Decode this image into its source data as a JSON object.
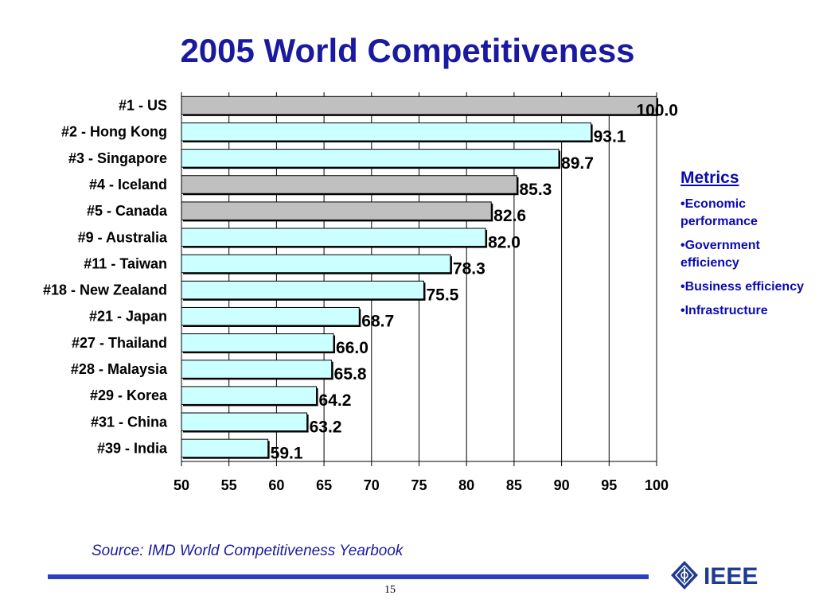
{
  "slide": {
    "source": "Source: IMD World Competitiveness Yearbook",
    "page_number": "15",
    "logo_text": "IEEE"
  },
  "metrics": {
    "heading": "Metrics",
    "items": [
      "•Economic performance",
      "•Government efficiency",
      "•Business efficiency",
      "•Infrastructure"
    ]
  },
  "chart_data": {
    "type": "bar",
    "orientation": "horizontal",
    "title": "2005 World Competitiveness",
    "xlabel": "",
    "ylabel": "",
    "xlim": [
      50,
      100
    ],
    "xticks": [
      50,
      55,
      60,
      65,
      70,
      75,
      80,
      85,
      90,
      95,
      100
    ],
    "grid": "vertical",
    "legend": "none",
    "categories": [
      "#1 - US",
      "#2 - Hong Kong",
      "#3 - Singapore",
      "#4 - Iceland",
      "#5 - Canada",
      "#9 - Australia",
      "#11 - Taiwan",
      "#18 - New Zealand",
      "#21 - Japan",
      "#27 - Thailand",
      "#28 - Malaysia",
      "#29 - Korea",
      "#31 - China",
      "#39 - India"
    ],
    "values": [
      100.0,
      93.1,
      89.7,
      85.3,
      82.6,
      82.0,
      78.3,
      75.5,
      68.7,
      66.0,
      65.8,
      64.2,
      63.2,
      59.1
    ],
    "value_labels": [
      "100.0",
      "93.1",
      "89.7",
      "85.3",
      "82.6",
      "82.0",
      "78.3",
      "75.5",
      "68.7",
      "66.0",
      "65.8",
      "64.2",
      "63.2",
      "59.1"
    ],
    "bar_colors": [
      "#c0c0c0",
      "#ccffff",
      "#ccffff",
      "#c0c0c0",
      "#c0c0c0",
      "#ccffff",
      "#ccffff",
      "#ccffff",
      "#ccffff",
      "#ccffff",
      "#ccffff",
      "#ccffff",
      "#ccffff",
      "#ccffff"
    ],
    "bar_outline_color": "#000000"
  }
}
